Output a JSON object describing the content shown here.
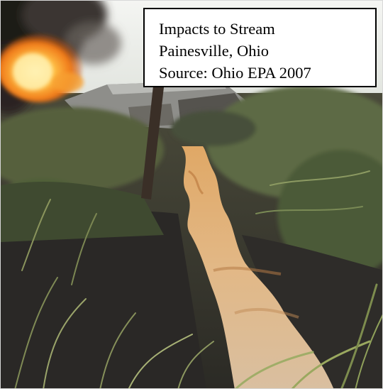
{
  "caption": {
    "lines": [
      "Impacts to Stream",
      "Painesville, Ohio",
      "Source:  Ohio EPA 2007"
    ]
  },
  "photo": {
    "subject": "stream-impact-photo",
    "colors": {
      "fire": "#f5a623",
      "smoke": "#2b2622",
      "sky": "#e9ece8",
      "stream_water": "#d8a56a",
      "burnt_soil": "#2a2826",
      "vegetation": "#4f5a37"
    }
  }
}
